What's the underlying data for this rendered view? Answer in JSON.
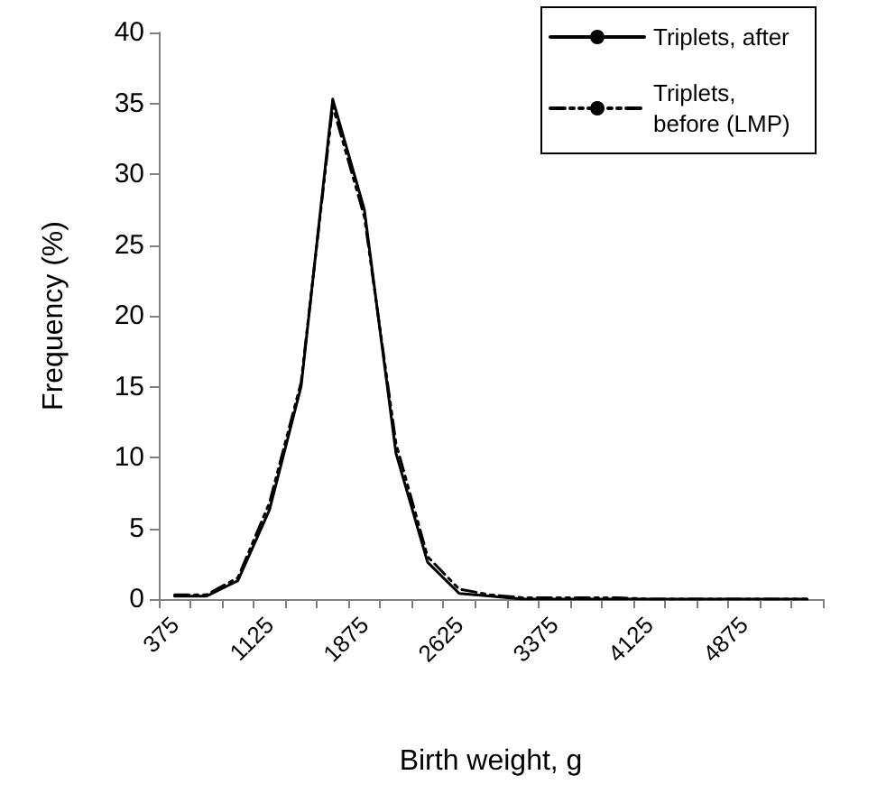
{
  "chart_data": {
    "type": "line",
    "xlabel": "Birth weight, g",
    "ylabel": "Frequency (%)",
    "categories": [
      "375",
      null,
      null,
      "1125",
      null,
      null,
      "1875",
      null,
      null,
      "2625",
      null,
      null,
      "3375",
      null,
      null,
      "4125",
      null,
      null,
      "4875",
      null,
      null
    ],
    "series": [
      {
        "name": "Triplets, after",
        "color": "#000000",
        "line_style": "solid",
        "values": [
          0.2,
          0.2,
          1.3,
          6.3,
          15,
          35.3,
          27.5,
          10.3,
          2.6,
          0.4,
          0.2,
          0,
          0,
          0,
          0,
          0,
          0,
          0,
          0,
          0,
          0
        ]
      },
      {
        "name": "Triplets, before (LMP)",
        "color": "#000000",
        "line_style": "dashed",
        "values": [
          0.3,
          0.3,
          1.5,
          6.8,
          15.3,
          34.8,
          27,
          11,
          3,
          0.7,
          0.3,
          0.1,
          0.1,
          0.1,
          0.1,
          0,
          0,
          0,
          0,
          0,
          0
        ]
      }
    ],
    "ylim": [
      0,
      40
    ],
    "yticks": [
      0,
      5,
      10,
      15,
      20,
      25,
      30,
      35,
      40
    ],
    "grid": false,
    "legend": "top right",
    "marker": "none"
  }
}
